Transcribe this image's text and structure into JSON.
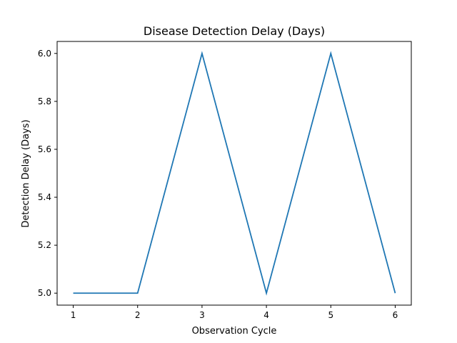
{
  "chart_data": {
    "type": "line",
    "title": "Disease Detection Delay (Days)",
    "xlabel": "Observation Cycle",
    "ylabel": "Detection Delay (Days)",
    "x": [
      1,
      2,
      3,
      4,
      5,
      6
    ],
    "series": [
      {
        "name": "Detection Delay",
        "values": [
          5,
          5,
          6,
          5,
          6,
          5
        ],
        "color": "#1f77b4"
      }
    ],
    "xticks": [
      "1",
      "2",
      "3",
      "4",
      "5",
      "6"
    ],
    "yticks": [
      "5.0",
      "5.2",
      "5.4",
      "5.6",
      "5.8",
      "6.0"
    ],
    "xlim": [
      0.75,
      6.25
    ],
    "ylim": [
      4.95,
      6.05
    ]
  }
}
